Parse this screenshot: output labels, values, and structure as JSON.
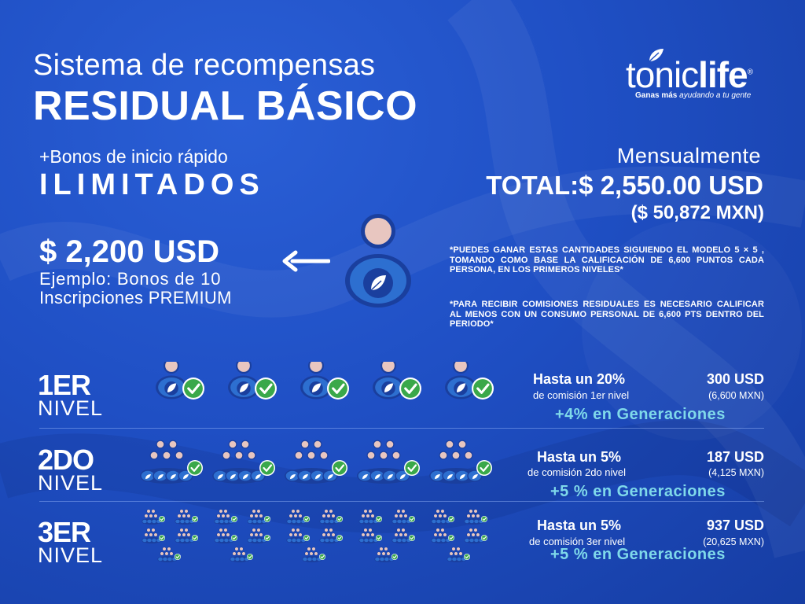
{
  "title": {
    "line1": "Sistema de recompensas",
    "line2": "RESIDUAL BÁSICO"
  },
  "logo": {
    "word_regular": "tonic",
    "word_bold": "life",
    "registered": "®",
    "tagline_bold": "Ganas más",
    "tagline_rest": " ayudando a tu gente"
  },
  "bonus": {
    "line1": "+Bonos de inicio rápido",
    "line2": "ILIMITADOS"
  },
  "monthly": {
    "label": "Mensualmente",
    "total": "TOTAL:$ 2,550.00 USD",
    "mxn": "($ 50,872 MXN)"
  },
  "example": {
    "amount": "$ 2,200 USD",
    "line1": "Ejemplo: Bonos de 10",
    "line2": "Inscripciones PREMIUM"
  },
  "notes": [
    "*PUEDES GANAR ESTAS CANTIDADES SIGUIENDO EL MODELO 5 × 5 , TOMANDO COMO BASE LA CALIFICACIÓN DE 6,600 PUNTOS CADA PERSONA, EN LOS PRIMEROS NIVELES*",
    "*PARA RECIBIR COMISIONES RESIDUALES ES NECESARIO CALIFICAR AL MENOS CON UN CONSUMO PERSONAL DE 6,600 PTS DENTRO DEL PERIODO*"
  ],
  "levels": [
    {
      "num": "1ER",
      "word": "NIVEL",
      "hasta": "Hasta un 20%",
      "comision": "de comisión 1er nivel",
      "usd": "300 USD",
      "mxn": "(6,600 MXN)",
      "generaciones": "+4% en Generaciones"
    },
    {
      "num": "2DO",
      "word": "NIVEL",
      "hasta": "Hasta un 5%",
      "comision": "de comisión 2do nivel",
      "usd": "187 USD",
      "mxn": "(4,125 MXN)",
      "generaciones": "+5 % en Generaciones"
    },
    {
      "num": "3ER",
      "word": "NIVEL",
      "hasta": "Hasta un 5%",
      "comision": "de comisión 3er nivel",
      "usd": "937 USD",
      "mxn": "(20,625 MXN)",
      "generaciones": "+5 % en Generaciones"
    }
  ],
  "colors": {
    "background": "#1f4fc4",
    "accent_cyan": "#7fd9ea",
    "check_green": "#3aa84a",
    "head_pink": "#e8c6c0",
    "body_blue": "#2d6fd0"
  },
  "icons": [
    "person-leaf-icon",
    "check-icon",
    "arrow-left-icon",
    "leaf-icon"
  ]
}
